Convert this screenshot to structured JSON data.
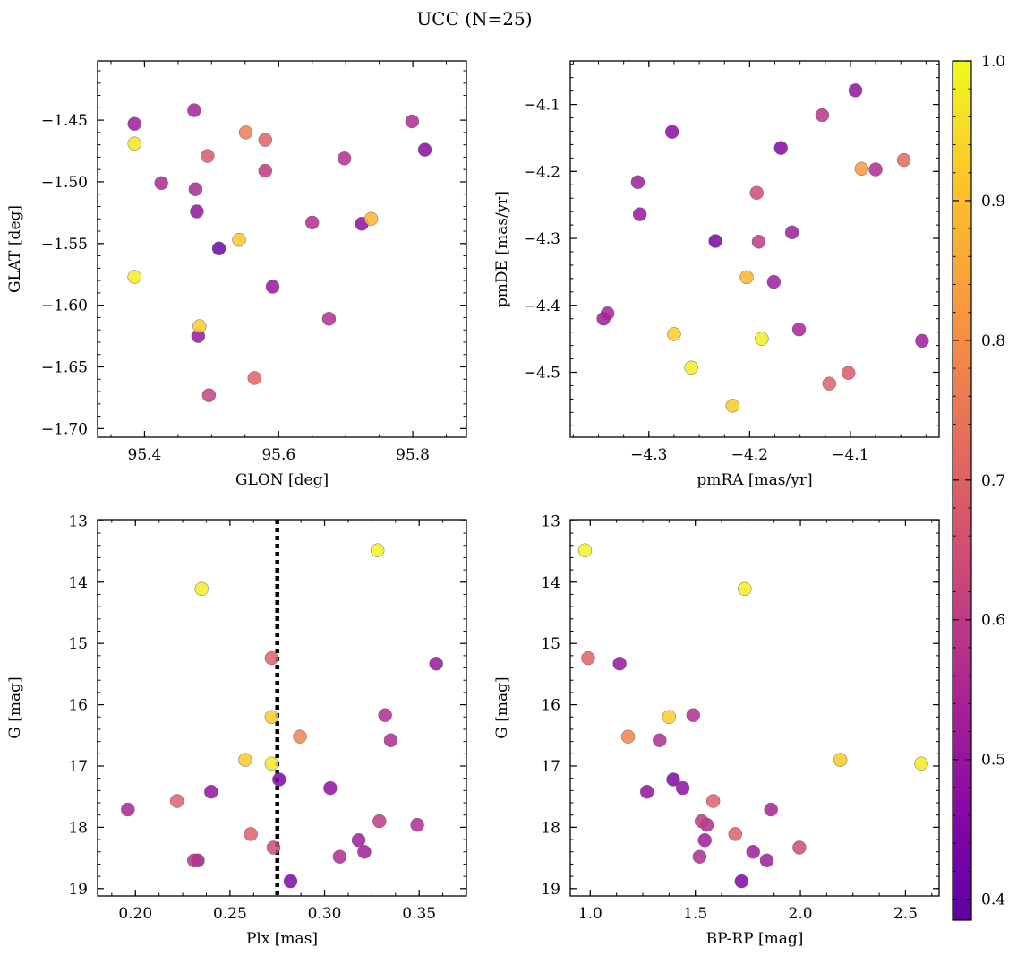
{
  "figure": {
    "title": "UCC (N=25)"
  },
  "colorbar": {
    "cmap": "plasma",
    "range": [
      0.385,
      1.0
    ],
    "ticks": [
      0.4,
      0.5,
      0.6,
      0.7,
      0.8,
      0.9,
      1.0
    ],
    "tick_labels": [
      "0.4",
      "0.5",
      "0.6",
      "0.7",
      "0.8",
      "0.9",
      "1.0"
    ]
  },
  "chart_data": [
    {
      "type": "scatter",
      "xlabel": "GLON [deg]",
      "ylabel": "GLAT [deg]",
      "xlim": [
        95.33,
        95.88
      ],
      "ylim": [
        -1.707,
        -1.402
      ],
      "xticks": [
        95.4,
        95.6,
        95.8
      ],
      "xtick_labels": [
        "95.4",
        "95.6",
        "95.8"
      ],
      "yticks": [
        -1.45,
        -1.5,
        -1.55,
        -1.6,
        -1.65,
        -1.7
      ],
      "ytick_labels": [
        "−1.45",
        "−1.50",
        "−1.55",
        "−1.60",
        "−1.65",
        "−1.70"
      ],
      "points": [
        {
          "x": 95.385,
          "y": -1.453,
          "c": 0.52
        },
        {
          "x": 95.385,
          "y": -1.469,
          "c": 0.97
        },
        {
          "x": 95.385,
          "y": -1.577,
          "c": 0.98
        },
        {
          "x": 95.425,
          "y": -1.501,
          "c": 0.55
        },
        {
          "x": 95.474,
          "y": -1.442,
          "c": 0.54
        },
        {
          "x": 95.476,
          "y": -1.506,
          "c": 0.55
        },
        {
          "x": 95.478,
          "y": -1.524,
          "c": 0.49
        },
        {
          "x": 95.48,
          "y": -1.625,
          "c": 0.5
        },
        {
          "x": 95.482,
          "y": -1.617,
          "c": 0.93
        },
        {
          "x": 95.494,
          "y": -1.479,
          "c": 0.68
        },
        {
          "x": 95.496,
          "y": -1.673,
          "c": 0.62
        },
        {
          "x": 95.511,
          "y": -1.554,
          "c": 0.42
        },
        {
          "x": 95.541,
          "y": -1.547,
          "c": 0.92
        },
        {
          "x": 95.551,
          "y": -1.46,
          "c": 0.76
        },
        {
          "x": 95.564,
          "y": -1.659,
          "c": 0.7
        },
        {
          "x": 95.58,
          "y": -1.466,
          "c": 0.7
        },
        {
          "x": 95.58,
          "y": -1.491,
          "c": 0.6
        },
        {
          "x": 95.591,
          "y": -1.585,
          "c": 0.5
        },
        {
          "x": 95.65,
          "y": -1.533,
          "c": 0.56
        },
        {
          "x": 95.675,
          "y": -1.611,
          "c": 0.57
        },
        {
          "x": 95.698,
          "y": -1.481,
          "c": 0.57
        },
        {
          "x": 95.724,
          "y": -1.534,
          "c": 0.48
        },
        {
          "x": 95.738,
          "y": -1.53,
          "c": 0.88
        },
        {
          "x": 95.799,
          "y": -1.451,
          "c": 0.56
        },
        {
          "x": 95.818,
          "y": -1.474,
          "c": 0.47
        }
      ]
    },
    {
      "type": "scatter",
      "xlabel": "pmRA [mas/yr]",
      "ylabel": "pmDE [mas/yr]",
      "xlim": [
        -4.378,
        -4.012
      ],
      "ylim": [
        -4.597,
        -4.035
      ],
      "xticks": [
        -4.3,
        -4.2,
        -4.1
      ],
      "xtick_labels": [
        "−4.3",
        "−4.2",
        "−4.1"
      ],
      "yticks": [
        -4.1,
        -4.2,
        -4.3,
        -4.4,
        -4.5
      ],
      "ytick_labels": [
        "−4.1",
        "−4.2",
        "−4.3",
        "−4.4",
        "−4.5"
      ],
      "points": [
        {
          "x": -4.345,
          "y": -4.42,
          "c": 0.52
        },
        {
          "x": -4.341,
          "y": -4.412,
          "c": 0.54
        },
        {
          "x": -4.311,
          "y": -4.216,
          "c": 0.52
        },
        {
          "x": -4.309,
          "y": -4.264,
          "c": 0.5
        },
        {
          "x": -4.277,
          "y": -4.141,
          "c": 0.47
        },
        {
          "x": -4.275,
          "y": -4.443,
          "c": 0.93
        },
        {
          "x": -4.258,
          "y": -4.493,
          "c": 0.98
        },
        {
          "x": -4.234,
          "y": -4.304,
          "c": 0.44
        },
        {
          "x": -4.217,
          "y": -4.55,
          "c": 0.92
        },
        {
          "x": -4.203,
          "y": -4.358,
          "c": 0.88
        },
        {
          "x": -4.193,
          "y": -4.232,
          "c": 0.64
        },
        {
          "x": -4.191,
          "y": -4.305,
          "c": 0.6
        },
        {
          "x": -4.188,
          "y": -4.45,
          "c": 0.98
        },
        {
          "x": -4.176,
          "y": -4.365,
          "c": 0.52
        },
        {
          "x": -4.169,
          "y": -4.165,
          "c": 0.45
        },
        {
          "x": -4.158,
          "y": -4.291,
          "c": 0.52
        },
        {
          "x": -4.151,
          "y": -4.436,
          "c": 0.54
        },
        {
          "x": -4.128,
          "y": -4.116,
          "c": 0.58
        },
        {
          "x": -4.121,
          "y": -4.517,
          "c": 0.7
        },
        {
          "x": -4.102,
          "y": -4.501,
          "c": 0.68
        },
        {
          "x": -4.095,
          "y": -4.079,
          "c": 0.49
        },
        {
          "x": -4.089,
          "y": -4.196,
          "c": 0.82
        },
        {
          "x": -4.075,
          "y": -4.197,
          "c": 0.56
        },
        {
          "x": -4.047,
          "y": -4.183,
          "c": 0.72
        },
        {
          "x": -4.029,
          "y": -4.453,
          "c": 0.52
        }
      ]
    },
    {
      "type": "scatter",
      "xlabel": "Plx [mas]",
      "ylabel": "G [mag]",
      "xlim": [
        0.18,
        0.375
      ],
      "ylim": [
        19.12,
        12.98
      ],
      "y_inverted": true,
      "vline": 0.275,
      "xticks": [
        0.2,
        0.25,
        0.3,
        0.35
      ],
      "xtick_labels": [
        "0.20",
        "0.25",
        "0.30",
        "0.35"
      ],
      "yticks": [
        13,
        14,
        15,
        16,
        17,
        18,
        19
      ],
      "ytick_labels": [
        "13",
        "14",
        "15",
        "16",
        "17",
        "18",
        "19"
      ],
      "points": [
        {
          "x": 0.196,
          "y": 17.71,
          "c": 0.54
        },
        {
          "x": 0.222,
          "y": 17.57,
          "c": 0.7
        },
        {
          "x": 0.231,
          "y": 18.54,
          "c": 0.58
        },
        {
          "x": 0.233,
          "y": 18.54,
          "c": 0.52
        },
        {
          "x": 0.235,
          "y": 14.11,
          "c": 0.98
        },
        {
          "x": 0.24,
          "y": 17.42,
          "c": 0.49
        },
        {
          "x": 0.258,
          "y": 16.9,
          "c": 0.92
        },
        {
          "x": 0.261,
          "y": 18.11,
          "c": 0.7
        },
        {
          "x": 0.272,
          "y": 15.24,
          "c": 0.7
        },
        {
          "x": 0.272,
          "y": 16.2,
          "c": 0.93
        },
        {
          "x": 0.272,
          "y": 16.96,
          "c": 0.97
        },
        {
          "x": 0.273,
          "y": 18.33,
          "c": 0.64
        },
        {
          "x": 0.276,
          "y": 17.22,
          "c": 0.45
        },
        {
          "x": 0.282,
          "y": 18.88,
          "c": 0.45
        },
        {
          "x": 0.287,
          "y": 16.52,
          "c": 0.78
        },
        {
          "x": 0.303,
          "y": 17.36,
          "c": 0.48
        },
        {
          "x": 0.308,
          "y": 18.48,
          "c": 0.56
        },
        {
          "x": 0.318,
          "y": 18.21,
          "c": 0.52
        },
        {
          "x": 0.321,
          "y": 18.4,
          "c": 0.52
        },
        {
          "x": 0.328,
          "y": 13.48,
          "c": 0.99
        },
        {
          "x": 0.329,
          "y": 17.9,
          "c": 0.6
        },
        {
          "x": 0.332,
          "y": 16.17,
          "c": 0.56
        },
        {
          "x": 0.335,
          "y": 16.58,
          "c": 0.56
        },
        {
          "x": 0.349,
          "y": 17.96,
          "c": 0.56
        },
        {
          "x": 0.359,
          "y": 15.33,
          "c": 0.5
        }
      ]
    },
    {
      "type": "scatter",
      "xlabel": "BP-RP [mag]",
      "ylabel": "G [mag]",
      "xlim": [
        0.905,
        2.66
      ],
      "ylim": [
        19.12,
        12.98
      ],
      "y_inverted": true,
      "xticks": [
        1.0,
        1.5,
        2.0,
        2.5
      ],
      "xtick_labels": [
        "1.0",
        "1.5",
        "2.0",
        "2.5"
      ],
      "yticks": [
        13,
        14,
        15,
        16,
        17,
        18,
        19
      ],
      "ytick_labels": [
        "13",
        "14",
        "15",
        "16",
        "17",
        "18",
        "19"
      ],
      "points": [
        {
          "x": 0.975,
          "y": 13.48,
          "c": 0.99
        },
        {
          "x": 0.99,
          "y": 15.24,
          "c": 0.7
        },
        {
          "x": 1.14,
          "y": 15.33,
          "c": 0.5
        },
        {
          "x": 1.18,
          "y": 16.52,
          "c": 0.78
        },
        {
          "x": 1.27,
          "y": 17.42,
          "c": 0.49
        },
        {
          "x": 1.33,
          "y": 16.58,
          "c": 0.56
        },
        {
          "x": 1.375,
          "y": 16.2,
          "c": 0.93
        },
        {
          "x": 1.395,
          "y": 17.22,
          "c": 0.45
        },
        {
          "x": 1.44,
          "y": 17.36,
          "c": 0.48
        },
        {
          "x": 1.49,
          "y": 16.17,
          "c": 0.56
        },
        {
          "x": 1.52,
          "y": 18.48,
          "c": 0.56
        },
        {
          "x": 1.53,
          "y": 17.9,
          "c": 0.6
        },
        {
          "x": 1.545,
          "y": 18.21,
          "c": 0.52
        },
        {
          "x": 1.555,
          "y": 17.96,
          "c": 0.56
        },
        {
          "x": 1.585,
          "y": 17.57,
          "c": 0.7
        },
        {
          "x": 1.69,
          "y": 18.11,
          "c": 0.7
        },
        {
          "x": 1.72,
          "y": 18.88,
          "c": 0.45
        },
        {
          "x": 1.735,
          "y": 14.11,
          "c": 0.98
        },
        {
          "x": 1.775,
          "y": 18.4,
          "c": 0.52
        },
        {
          "x": 1.84,
          "y": 18.54,
          "c": 0.52
        },
        {
          "x": 1.86,
          "y": 17.71,
          "c": 0.54
        },
        {
          "x": 1.995,
          "y": 18.33,
          "c": 0.64
        },
        {
          "x": 2.19,
          "y": 16.9,
          "c": 0.92
        },
        {
          "x": 2.575,
          "y": 16.96,
          "c": 0.97
        }
      ]
    }
  ]
}
